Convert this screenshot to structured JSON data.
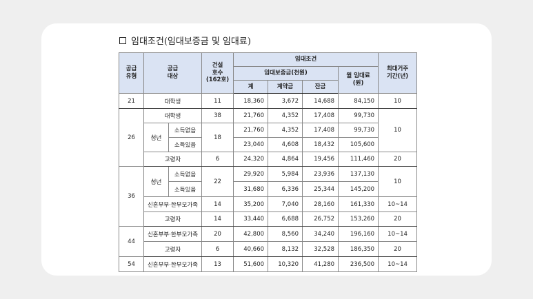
{
  "heading": "임대조건(임대보증금 및 임대료)",
  "headers": {
    "supply_type": "공급\n유형",
    "supply_target": "공급\n대상",
    "units": "건설\n호수\n(162호)",
    "rent_conditions": "임대조건",
    "deposit": "임대보증금(천원)",
    "total": "계",
    "down_payment": "계약금",
    "balance": "잔금",
    "monthly_rent": "월 임대료\n(원)",
    "max_period": "최대거주\n기간(년)"
  },
  "rows": {
    "r21": {
      "type": "21",
      "target": "대학생",
      "units": "11",
      "total": "18,360",
      "down": "3,672",
      "balance": "14,688",
      "rent": "84,150",
      "period": "10"
    },
    "r26a": {
      "target": "대학생",
      "units": "38",
      "total": "21,760",
      "down": "4,352",
      "balance": "17,408",
      "rent": "99,730"
    },
    "r26b": {
      "group": "청년",
      "sub": "소득없음",
      "total": "21,760",
      "down": "4,352",
      "balance": "17,408",
      "rent": "99,730"
    },
    "r26c": {
      "sub": "소득있음",
      "total": "23,040",
      "down": "4,608",
      "balance": "18,432",
      "rent": "105,600"
    },
    "r26d": {
      "target": "고령자",
      "units": "6",
      "total": "24,320",
      "down": "4,864",
      "balance": "19,456",
      "rent": "111,460",
      "period": "20"
    },
    "t26": {
      "type": "26",
      "youth_units": "18",
      "period": "10"
    },
    "r36a": {
      "group": "청년",
      "sub": "소득없음",
      "units": "22",
      "total": "29,920",
      "down": "5,984",
      "balance": "23,936",
      "rent": "137,130",
      "period": "10"
    },
    "r36b": {
      "sub": "소득있음",
      "total": "31,680",
      "down": "6,336",
      "balance": "25,344",
      "rent": "145,200"
    },
    "r36c": {
      "target": "신혼부부·한부모가족",
      "units": "14",
      "total": "35,200",
      "down": "7,040",
      "balance": "28,160",
      "rent": "161,330",
      "period": "10~14"
    },
    "r36d": {
      "target": "고령자",
      "units": "14",
      "total": "33,440",
      "down": "6,688",
      "balance": "26,752",
      "rent": "153,260",
      "period": "20"
    },
    "t36": {
      "type": "36"
    },
    "r44a": {
      "type": "44",
      "target": "신혼부부·한부모가족",
      "units": "20",
      "total": "42,800",
      "down": "8,560",
      "balance": "34,240",
      "rent": "196,160",
      "period": "10~14"
    },
    "r44b": {
      "target": "고령자",
      "units": "6",
      "total": "40,660",
      "down": "8,132",
      "balance": "32,528",
      "rent": "186,350",
      "period": "20"
    },
    "r54": {
      "type": "54",
      "target": "신혼부부·한부모가족",
      "units": "13",
      "total": "51,600",
      "down": "10,320",
      "balance": "41,280",
      "rent": "236,500",
      "period": "10~14"
    }
  }
}
